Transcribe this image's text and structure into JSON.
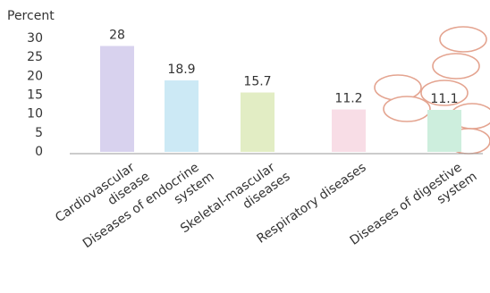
{
  "chart_data": {
    "type": "bar",
    "y_label": "Percent",
    "categories": [
      [
        "Cardiovascular",
        "disease"
      ],
      [
        "Diseases of endocrine",
        "system"
      ],
      [
        "Skeletal-mascular",
        "diseases"
      ],
      [
        "Respiratory diseases"
      ],
      [
        "Diseases of digestive",
        "system"
      ]
    ],
    "values": [
      28,
      18.9,
      15.7,
      11.2,
      11.1
    ],
    "colors": [
      "#d8d2ee",
      "#cce9f5",
      "#e2edc4",
      "#f8dde6",
      "#cdeedd"
    ],
    "ylim": [
      0,
      30
    ],
    "yticks": [
      0,
      5,
      10,
      15,
      20,
      25,
      30
    ],
    "grid": false
  }
}
